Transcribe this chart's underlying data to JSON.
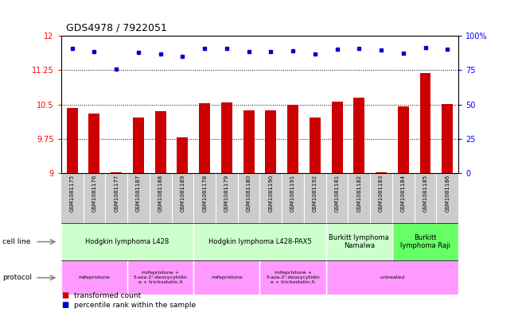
{
  "title": "GDS4978 / 7922051",
  "samples": [
    "GSM1081175",
    "GSM1081176",
    "GSM1081177",
    "GSM1081187",
    "GSM1081188",
    "GSM1081189",
    "GSM1081178",
    "GSM1081179",
    "GSM1081180",
    "GSM1081190",
    "GSM1081191",
    "GSM1081192",
    "GSM1081181",
    "GSM1081182",
    "GSM1081183",
    "GSM1081184",
    "GSM1081185",
    "GSM1081186"
  ],
  "bar_values": [
    10.42,
    10.3,
    9.02,
    10.22,
    10.35,
    9.78,
    10.53,
    10.55,
    10.38,
    10.38,
    10.5,
    10.22,
    10.57,
    10.65,
    9.02,
    10.46,
    11.18,
    10.52
  ],
  "dot_values": [
    11.72,
    11.65,
    11.28,
    11.64,
    11.6,
    11.55,
    11.72,
    11.73,
    11.66,
    11.65,
    11.68,
    11.61,
    11.7,
    11.72,
    11.69,
    11.63,
    11.74,
    11.71
  ],
  "bar_color": "#cc0000",
  "dot_color": "#0000cc",
  "ylim_left": [
    9.0,
    12.0
  ],
  "ylim_right": [
    0,
    100
  ],
  "yticks_left": [
    9.0,
    9.75,
    10.5,
    11.25,
    12.0
  ],
  "ytick_labels_left": [
    "9",
    "9.75",
    "10.5",
    "11.25",
    "12"
  ],
  "yticks_right": [
    0,
    25,
    50,
    75,
    100
  ],
  "ytick_labels_right": [
    "0",
    "25",
    "50",
    "75",
    "100%"
  ],
  "cell_line_groups": [
    {
      "label": "Hodgkin lymphoma L428",
      "start": 0,
      "end": 6,
      "color": "#ccffcc"
    },
    {
      "label": "Hodgkin lymphoma L428-PAX5",
      "start": 6,
      "end": 12,
      "color": "#ccffcc"
    },
    {
      "label": "Burkitt lymphoma\nNamalwa",
      "start": 12,
      "end": 15,
      "color": "#ccffcc"
    },
    {
      "label": "Burkitt\nlymphoma Raji",
      "start": 15,
      "end": 18,
      "color": "#66ff66"
    }
  ],
  "protocol_groups": [
    {
      "label": "mifepristone",
      "start": 0,
      "end": 3,
      "color": "#ff99ff"
    },
    {
      "label": "mifepristone +\n5-aza-2'-deoxycytidin\ne + trichostatin A",
      "start": 3,
      "end": 6,
      "color": "#ff99ff"
    },
    {
      "label": "mifepristone",
      "start": 6,
      "end": 9,
      "color": "#ff99ff"
    },
    {
      "label": "mifepristone +\n5-aza-2'-deoxycytidin\ne + trichostatin A",
      "start": 9,
      "end": 12,
      "color": "#ff99ff"
    },
    {
      "label": "untreated",
      "start": 12,
      "end": 18,
      "color": "#ff99ff"
    }
  ],
  "xtick_bg": "#cccccc",
  "fig_width": 6.51,
  "fig_height": 3.93,
  "dpi": 100
}
